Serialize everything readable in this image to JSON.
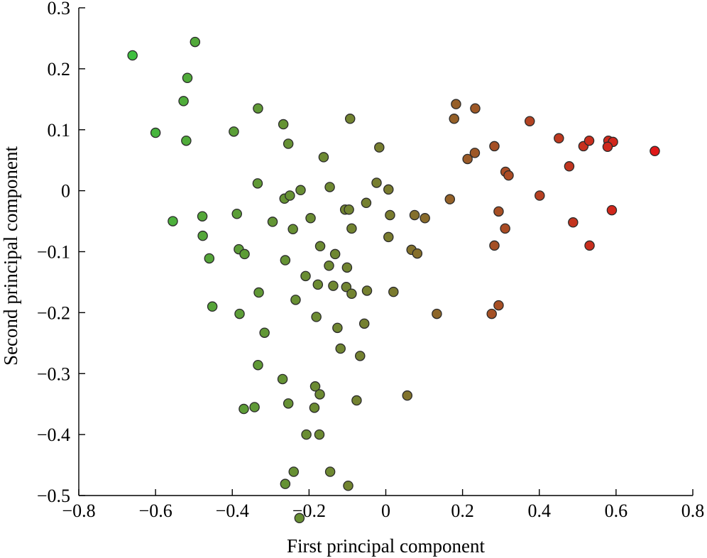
{
  "chart_data": {
    "type": "scatter",
    "xlabel": "First principal component",
    "ylabel": "Second principal component",
    "xlim": [
      -0.8,
      0.8
    ],
    "ylim": [
      -0.5,
      0.3
    ],
    "xticks": [
      -0.8,
      -0.6,
      -0.4,
      -0.2,
      0,
      0.2,
      0.4,
      0.6,
      0.8
    ],
    "xtick_labels": [
      "−0.8",
      "−0.6",
      "−0.4",
      "−0.2",
      "0",
      "0.2",
      "0.4",
      "0.6",
      "0.8"
    ],
    "yticks": [
      -0.5,
      -0.4,
      -0.3,
      -0.2,
      -0.1,
      0,
      0.1,
      0.2,
      0.3
    ],
    "ytick_labels": [
      "−0.5",
      "−0.4",
      "−0.3",
      "−0.2",
      "−0.1",
      "0",
      "0.1",
      "0.2",
      "0.3"
    ],
    "grid": false,
    "color_scale": {
      "low": "#3fbf3f",
      "mid": "#7a7a2e",
      "high": "#e01818"
    },
    "points": [
      {
        "x": -0.66,
        "y": 0.222
      },
      {
        "x": -0.497,
        "y": 0.244
      },
      {
        "x": -0.517,
        "y": 0.185
      },
      {
        "x": -0.527,
        "y": 0.147
      },
      {
        "x": -0.6,
        "y": 0.095
      },
      {
        "x": -0.52,
        "y": 0.082
      },
      {
        "x": -0.333,
        "y": 0.135
      },
      {
        "x": -0.396,
        "y": 0.097
      },
      {
        "x": -0.267,
        "y": 0.109
      },
      {
        "x": -0.254,
        "y": 0.077
      },
      {
        "x": -0.162,
        "y": 0.055
      },
      {
        "x": -0.093,
        "y": 0.118
      },
      {
        "x": -0.334,
        "y": 0.012
      },
      {
        "x": -0.222,
        "y": 0.001
      },
      {
        "x": -0.146,
        "y": 0.006
      },
      {
        "x": -0.555,
        "y": -0.05
      },
      {
        "x": -0.478,
        "y": -0.042
      },
      {
        "x": -0.388,
        "y": -0.038
      },
      {
        "x": -0.264,
        "y": -0.013
      },
      {
        "x": -0.25,
        "y": -0.008
      },
      {
        "x": -0.295,
        "y": -0.051
      },
      {
        "x": -0.196,
        "y": -0.045
      },
      {
        "x": -0.242,
        "y": -0.063
      },
      {
        "x": -0.477,
        "y": -0.074
      },
      {
        "x": -0.46,
        "y": -0.111
      },
      {
        "x": -0.383,
        "y": -0.096
      },
      {
        "x": -0.368,
        "y": -0.104
      },
      {
        "x": -0.262,
        "y": -0.114
      },
      {
        "x": -0.171,
        "y": -0.091
      },
      {
        "x": -0.132,
        "y": -0.104
      },
      {
        "x": -0.148,
        "y": -0.123
      },
      {
        "x": -0.106,
        "y": -0.031
      },
      {
        "x": -0.096,
        "y": -0.031
      },
      {
        "x": -0.051,
        "y": -0.02
      },
      {
        "x": -0.017,
        "y": 0.071
      },
      {
        "x": 0.007,
        "y": 0.002
      },
      {
        "x": -0.024,
        "y": 0.013
      },
      {
        "x": -0.089,
        "y": -0.062
      },
      {
        "x": 0.011,
        "y": -0.04
      },
      {
        "x": 0.007,
        "y": -0.076
      },
      {
        "x": 0.075,
        "y": -0.04
      },
      {
        "x": 0.102,
        "y": -0.045
      },
      {
        "x": -0.101,
        "y": -0.126
      },
      {
        "x": 0.067,
        "y": -0.097
      },
      {
        "x": 0.082,
        "y": -0.103
      },
      {
        "x": -0.209,
        "y": -0.14
      },
      {
        "x": -0.177,
        "y": -0.154
      },
      {
        "x": -0.137,
        "y": -0.156
      },
      {
        "x": -0.103,
        "y": -0.158
      },
      {
        "x": -0.089,
        "y": -0.169
      },
      {
        "x": -0.049,
        "y": -0.164
      },
      {
        "x": 0.02,
        "y": -0.166
      },
      {
        "x": -0.331,
        "y": -0.167
      },
      {
        "x": -0.235,
        "y": -0.179
      },
      {
        "x": -0.452,
        "y": -0.19
      },
      {
        "x": -0.381,
        "y": -0.202
      },
      {
        "x": -0.181,
        "y": -0.207
      },
      {
        "x": -0.126,
        "y": -0.225
      },
      {
        "x": -0.316,
        "y": -0.233
      },
      {
        "x": -0.056,
        "y": -0.218
      },
      {
        "x": -0.118,
        "y": -0.259
      },
      {
        "x": -0.067,
        "y": -0.271
      },
      {
        "x": -0.333,
        "y": -0.286
      },
      {
        "x": -0.269,
        "y": -0.309
      },
      {
        "x": -0.184,
        "y": -0.321
      },
      {
        "x": -0.172,
        "y": -0.334
      },
      {
        "x": 0.056,
        "y": -0.336
      },
      {
        "x": -0.076,
        "y": -0.344
      },
      {
        "x": -0.254,
        "y": -0.349
      },
      {
        "x": -0.186,
        "y": -0.356
      },
      {
        "x": -0.37,
        "y": -0.358
      },
      {
        "x": -0.342,
        "y": -0.355
      },
      {
        "x": -0.207,
        "y": -0.4
      },
      {
        "x": -0.173,
        "y": -0.4
      },
      {
        "x": -0.24,
        "y": -0.461
      },
      {
        "x": -0.145,
        "y": -0.461
      },
      {
        "x": -0.262,
        "y": -0.481
      },
      {
        "x": -0.098,
        "y": -0.484
      },
      {
        "x": -0.225,
        "y": -0.537
      },
      {
        "x": 0.133,
        "y": -0.202
      },
      {
        "x": 0.276,
        "y": -0.202
      },
      {
        "x": 0.294,
        "y": -0.188
      },
      {
        "x": 0.283,
        "y": -0.09
      },
      {
        "x": 0.311,
        "y": -0.062
      },
      {
        "x": 0.294,
        "y": -0.034
      },
      {
        "x": 0.167,
        "y": -0.014
      },
      {
        "x": 0.401,
        "y": -0.008
      },
      {
        "x": 0.488,
        "y": -0.052
      },
      {
        "x": 0.531,
        "y": -0.09
      },
      {
        "x": 0.589,
        "y": -0.032
      },
      {
        "x": 0.478,
        "y": 0.04
      },
      {
        "x": 0.312,
        "y": 0.031
      },
      {
        "x": 0.32,
        "y": 0.025
      },
      {
        "x": 0.213,
        "y": 0.052
      },
      {
        "x": 0.232,
        "y": 0.062
      },
      {
        "x": 0.283,
        "y": 0.073
      },
      {
        "x": 0.178,
        "y": 0.118
      },
      {
        "x": 0.183,
        "y": 0.142
      },
      {
        "x": 0.233,
        "y": 0.135
      },
      {
        "x": 0.375,
        "y": 0.114
      },
      {
        "x": 0.451,
        "y": 0.086
      },
      {
        "x": 0.515,
        "y": 0.073
      },
      {
        "x": 0.53,
        "y": 0.082
      },
      {
        "x": 0.58,
        "y": 0.082
      },
      {
        "x": 0.592,
        "y": 0.08
      },
      {
        "x": 0.578,
        "y": 0.072
      },
      {
        "x": 0.701,
        "y": 0.065
      }
    ]
  }
}
